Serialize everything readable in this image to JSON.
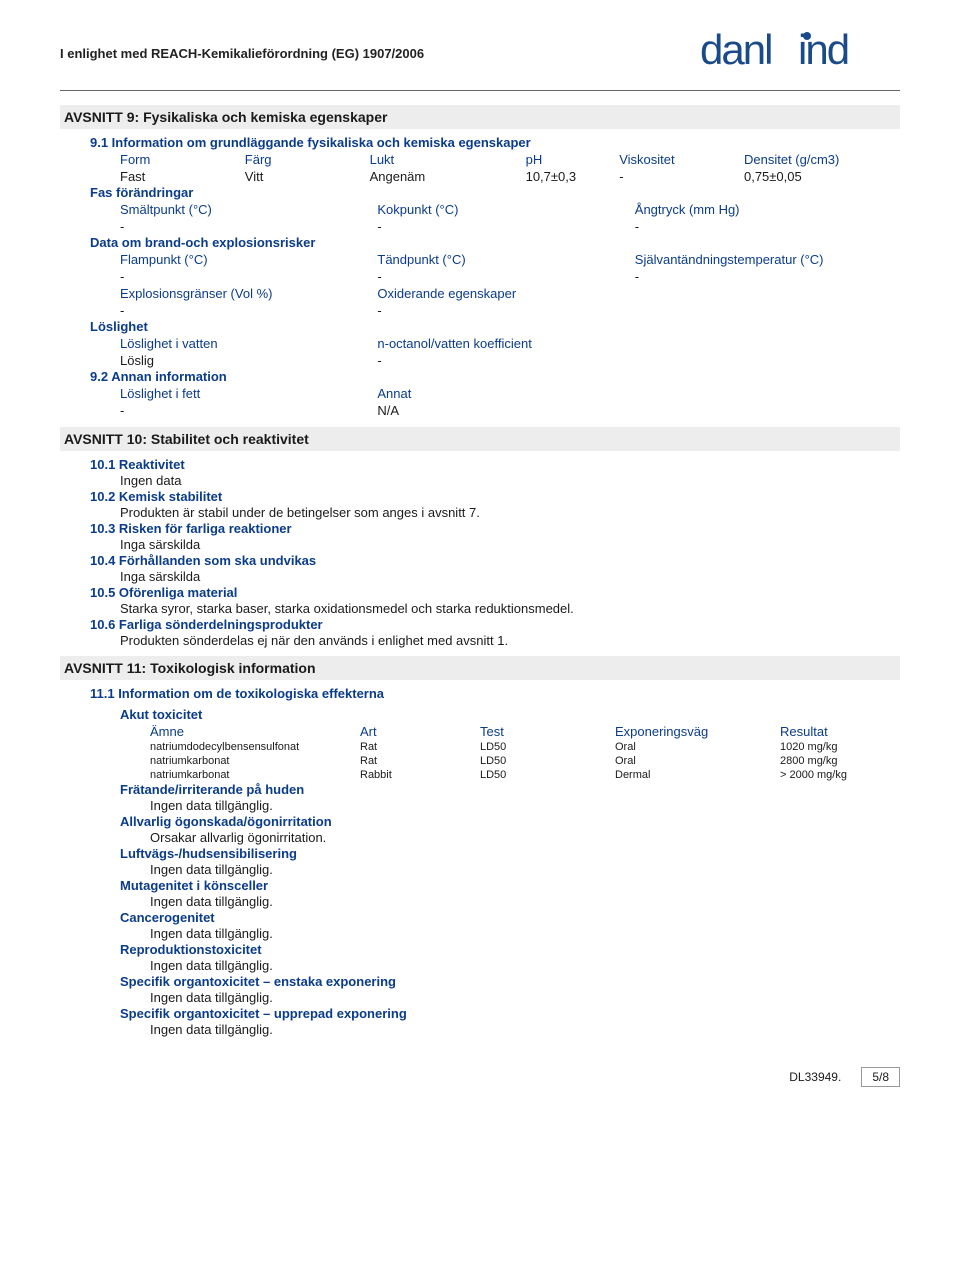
{
  "header": {
    "compliance": "I enlighet med REACH-Kemikalieförordning (EG) 1907/2006",
    "brand": "danlind"
  },
  "section9": {
    "title": "AVSNITT 9: Fysikaliska och kemiska egenskaper",
    "h91": "9.1 Information om grundläggande fysikaliska och kemiska egenskaper",
    "rowA": {
      "form": "Form",
      "farg": "Färg",
      "lukt": "Lukt",
      "ph": "pH",
      "visk": "Viskositet",
      "dens": "Densitet (g/cm3)"
    },
    "rowAv": {
      "form": "Fast",
      "farg": "Vitt",
      "lukt": "Angenäm",
      "ph": "10,7±0,3",
      "visk": "-",
      "dens": "0,75±0,05"
    },
    "fas": "Fas förändringar",
    "rowB": {
      "a": "Smältpunkt (°C)",
      "b": "Kokpunkt (°C)",
      "c": "Ångtryck (mm Hg)"
    },
    "rowBv": {
      "a": "-",
      "b": "-",
      "c": "-"
    },
    "data": "Data om brand-och explosionsrisker",
    "rowC": {
      "a": "Flampunkt (°C)",
      "b": "Tändpunkt (°C)",
      "c": "Självantändningstemperatur (°C)"
    },
    "rowCv": {
      "a": "-",
      "b": "-",
      "c": "-"
    },
    "rowD": {
      "a": "Explosionsgränser (Vol %)",
      "b": "Oxiderande egenskaper"
    },
    "rowDv": {
      "a": "-",
      "b": "-"
    },
    "los": "Löslighet",
    "rowE": {
      "a": "Löslighet i vatten",
      "b": "n-octanol/vatten koefficient"
    },
    "rowEv": {
      "a": "Löslig",
      "b": "-"
    },
    "h92": "9.2 Annan information",
    "rowF": {
      "a": "Löslighet i fett",
      "b": "Annat"
    },
    "rowFv": {
      "a": "-",
      "b": "N/A"
    }
  },
  "section10": {
    "title": "AVSNITT 10: Stabilitet och reaktivitet",
    "h1": "10.1 Reaktivitet",
    "t1": "Ingen data",
    "h2": "10.2 Kemisk stabilitet",
    "t2": "Produkten är stabil under de betingelser som anges i avsnitt 7.",
    "h3": "10.3 Risken för farliga reaktioner",
    "t3": "Inga särskilda",
    "h4": "10.4 Förhållanden som ska undvikas",
    "t4": "Inga särskilda",
    "h5": "10.5 Oförenliga material",
    "t5": "Starka syror, starka baser, starka oxidationsmedel och starka reduktionsmedel.",
    "h6": "10.6 Farliga sönderdelningsprodukter",
    "t6": "Produkten sönderdelas ej när den används i enlighet med avsnitt 1."
  },
  "section11": {
    "title": "AVSNITT 11: Toxikologisk information",
    "h1": "11.1 Information om de toxikologiska effekterna",
    "akut": "Akut toxicitet",
    "th": {
      "amne": "Ämne",
      "art": "Art",
      "test": "Test",
      "exp": "Exponeringsväg",
      "res": "Resultat"
    },
    "rows": [
      {
        "amne": "natriumdodecylbensensulfonat",
        "art": "Rat",
        "test": "LD50",
        "exp": "Oral",
        "res": "1020 mg/kg"
      },
      {
        "amne": "natriumkarbonat",
        "art": "Rat",
        "test": "LD50",
        "exp": "Oral",
        "res": "2800 mg/kg"
      },
      {
        "amne": "natriumkarbonat",
        "art": "Rabbit",
        "test": "LD50",
        "exp": "Dermal",
        "res": "> 2000 mg/kg"
      }
    ],
    "effects": [
      {
        "h": "Frätande/irriterande på huden",
        "t": "Ingen data tillgänglig."
      },
      {
        "h": "Allvarlig ögonskada/ögonirritation",
        "t": "Orsakar allvarlig ögonirritation."
      },
      {
        "h": "Luftvägs-/hudsensibilisering",
        "t": "Ingen data tillgänglig."
      },
      {
        "h": "Mutagenitet i könsceller",
        "t": "Ingen data tillgänglig."
      },
      {
        "h": "Cancerogenitet",
        "t": "Ingen data tillgänglig."
      },
      {
        "h": "Reproduktionstoxicitet",
        "t": "Ingen data tillgänglig."
      },
      {
        "h": "Specifik organtoxicitet – enstaka exponering",
        "t": "Ingen data tillgänglig."
      },
      {
        "h": "Specifik organtoxicitet – upprepad exponering",
        "t": "Ingen data tillgänglig."
      }
    ]
  },
  "footer": {
    "doc": "DL33949.",
    "page": "5/8"
  }
}
